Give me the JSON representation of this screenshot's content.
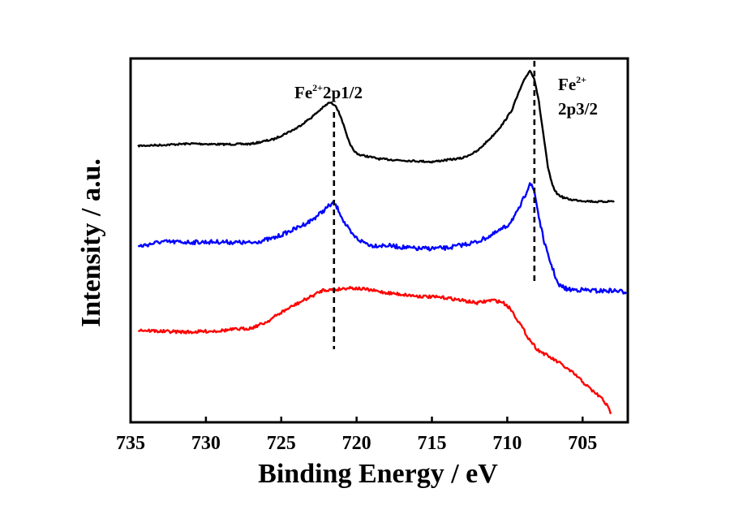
{
  "chart_data": {
    "type": "line",
    "xlabel": "Binding Energy / eV",
    "ylabel": "Intensity / a.u.",
    "xlim": [
      735,
      702
    ],
    "x_reversed": true,
    "xticks": [
      735,
      730,
      725,
      720,
      715,
      710,
      705
    ],
    "ylim": [
      0,
      100
    ],
    "y_ticks_shown": false,
    "grid": false,
    "legend": "none",
    "series": [
      {
        "color": "#000000",
        "x": [
          734.5,
          733,
          731,
          729,
          727,
          725.5,
          724,
          723,
          722.3,
          721.8,
          721.4,
          721.0,
          720.6,
          720.2,
          719.8,
          719.3,
          718.5,
          717,
          715,
          713,
          712,
          711,
          710.3,
          709.7,
          709.2,
          708.8,
          708.5,
          708.2,
          707.9,
          707.6,
          707.3,
          707.0,
          706.7,
          706.3,
          705.8,
          705,
          704,
          702.9
        ],
        "y": [
          76.0,
          76.2,
          76.6,
          76.4,
          76.5,
          77.8,
          80.8,
          83.8,
          86.3,
          87.9,
          87.2,
          83.5,
          78.0,
          74.6,
          73.5,
          73.1,
          72.4,
          72.0,
          71.6,
          72.6,
          74.5,
          78.6,
          82.0,
          85.8,
          91.0,
          94.7,
          96.7,
          94.5,
          88.0,
          79.0,
          70.0,
          65.0,
          62.8,
          61.8,
          61.2,
          60.9,
          60.6,
          60.8
        ]
      },
      {
        "color": "#0000ff",
        "x": [
          734.5,
          733,
          731,
          729,
          727,
          725.5,
          724,
          723,
          722.3,
          721.8,
          721.5,
          721.2,
          720.8,
          720.3,
          719.8,
          719,
          718,
          716,
          714,
          712,
          711,
          710,
          709.3,
          708.8,
          708.5,
          708.2,
          707.9,
          707.6,
          707.3,
          707.0,
          706.8,
          706.6,
          706.3,
          706,
          705,
          704,
          703,
          702.1
        ],
        "y": [
          48.3,
          49.6,
          49.5,
          49.6,
          49.3,
          50.6,
          53.3,
          55.5,
          57.8,
          59.6,
          60.2,
          58.4,
          54.8,
          51.6,
          50.0,
          48.6,
          48.6,
          47.7,
          47.9,
          49.6,
          51.5,
          54.0,
          57.9,
          62.6,
          65.8,
          63.5,
          56.4,
          50.4,
          45.9,
          42.4,
          40.0,
          37.6,
          37.2,
          36.5,
          36.4,
          36.1,
          36.2,
          35.8
        ]
      },
      {
        "color": "#ff0000",
        "x": [
          734.5,
          733,
          731,
          729,
          727,
          726,
          725,
          724,
          723,
          722.2,
          721.5,
          720.5,
          719.5,
          718,
          716,
          714,
          712,
          711,
          710.3,
          709.8,
          709.2,
          708.6,
          708,
          707.3,
          706.5,
          705.5,
          704.5,
          703.7,
          703.4,
          703.1
        ],
        "y": [
          25.4,
          25.0,
          24.8,
          25.2,
          25.9,
          27.5,
          30.2,
          32.5,
          34.6,
          36.4,
          36.4,
          37.0,
          36.6,
          35.6,
          34.7,
          34.2,
          32.8,
          33.6,
          33.0,
          31.3,
          27.4,
          23.2,
          20.0,
          18.2,
          16.2,
          13.1,
          9.2,
          6.5,
          4.7,
          2.4
        ]
      }
    ],
    "annotations": [
      {
        "label_main": "Fe",
        "label_sup": "2+",
        "label_line2": "2p1/2",
        "x": 721.5
      },
      {
        "label_main": "Fe",
        "label_sup": "2+",
        "label_line2": "2p3/2",
        "x": 708.2
      }
    ]
  }
}
